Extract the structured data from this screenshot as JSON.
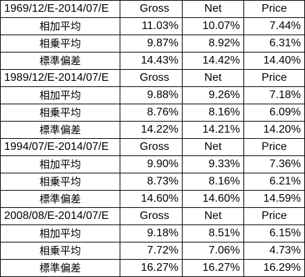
{
  "columns": [
    "Gross",
    "Net",
    "Price"
  ],
  "sections": [
    {
      "period": "1969/12/E-2014/07/E",
      "rows": [
        {
          "label": "相加平均",
          "values": [
            "11.03%",
            "10.07%",
            "7.44%"
          ]
        },
        {
          "label": "相乗平均",
          "values": [
            "9.87%",
            "8.92%",
            "6.31%"
          ]
        },
        {
          "label": "標準偏差",
          "values": [
            "14.43%",
            "14.42%",
            "14.40%"
          ]
        }
      ]
    },
    {
      "period": "1989/12/E-2014/07/E",
      "rows": [
        {
          "label": "相加平均",
          "values": [
            "9.88%",
            "9.26%",
            "7.18%"
          ]
        },
        {
          "label": "相乗平均",
          "values": [
            "8.76%",
            "8.16%",
            "6.09%"
          ]
        },
        {
          "label": "標準偏差",
          "values": [
            "14.22%",
            "14.21%",
            "14.20%"
          ]
        }
      ]
    },
    {
      "period": "1994/07/E-2014/07/E",
      "rows": [
        {
          "label": "相加平均",
          "values": [
            "9.90%",
            "9.33%",
            "7.36%"
          ]
        },
        {
          "label": "相乗平均",
          "values": [
            "8.73%",
            "8.16%",
            "6.21%"
          ]
        },
        {
          "label": "標準偏差",
          "values": [
            "14.60%",
            "14.60%",
            "14.59%"
          ]
        }
      ]
    },
    {
      "period": "2008/08/E-2014/07/E",
      "rows": [
        {
          "label": "相加平均",
          "values": [
            "9.18%",
            "8.51%",
            "6.15%"
          ]
        },
        {
          "label": "相乗平均",
          "values": [
            "7.72%",
            "7.06%",
            "4.73%"
          ]
        },
        {
          "label": "標準偏差",
          "values": [
            "16.27%",
            "16.27%",
            "16.29%"
          ]
        }
      ]
    }
  ]
}
